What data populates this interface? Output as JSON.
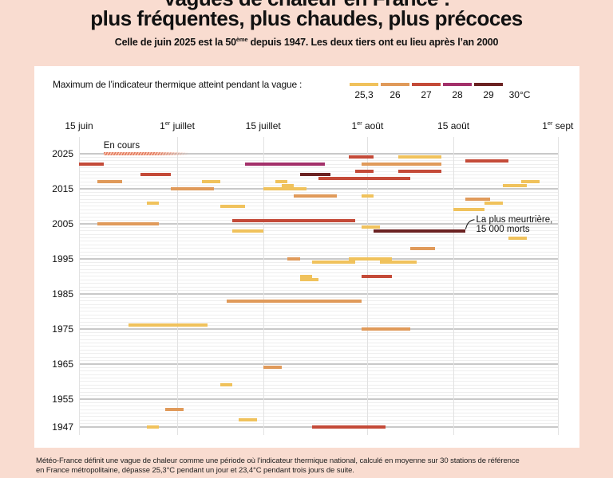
{
  "title_line1": "Vagues de chaleur en France :",
  "title_line2": "plus fréquentes, plus chaudes, plus précoces",
  "subtitle": {
    "before": "Celle de juin 2025 est la 50",
    "sup": "ème",
    "after": " depuis 1947. Les deux tiers ont eu lieu après l’an 2000"
  },
  "footnote_line1": "Météo-France définit une vague de chaleur comme une période où l’indicateur thermique national, calculé en moyenne sur 30 stations de référence",
  "footnote_line2": "en France métropolitaine, dépasse 25,3°C pendant un jour et 23,4°C pendant trois jours de suite.",
  "chart_data": {
    "type": "timeline",
    "legend": {
      "title": "Maximum de l’indicateur thermique atteint pendant la vague :",
      "ticks": [
        "25,3",
        "26",
        "27",
        "28",
        "29",
        "30°C"
      ],
      "colors": [
        "#f0c25c",
        "#e09a5a",
        "#c44a38",
        "#a3306a",
        "#6b2222"
      ]
    },
    "x_ticks": [
      {
        "num": "15 juin",
        "sup": "",
        "rest": "",
        "date": "06-15"
      },
      {
        "num": "1",
        "sup": "er",
        "rest": " juillet",
        "date": "07-01"
      },
      {
        "num": "15 juillet",
        "sup": "",
        "rest": "",
        "date": "07-15"
      },
      {
        "num": "1",
        "sup": "er",
        "rest": " août",
        "date": "08-01"
      },
      {
        "num": "15 août",
        "sup": "",
        "rest": "",
        "date": "08-15"
      },
      {
        "num": "1",
        "sup": "er",
        "rest": " sept",
        "date": "09-01"
      }
    ],
    "xlim": [
      "06-15",
      "09-01"
    ],
    "ylim": [
      1947,
      2025
    ],
    "y_ticks": [
      "2025",
      "2015",
      "2005",
      "1995",
      "1985",
      "1975",
      "1965",
      "1955",
      "1947"
    ],
    "ongoing": {
      "label": "En cours",
      "year": 2025,
      "start": "06-19",
      "end": "07-03"
    },
    "annotation": {
      "line1": "La plus meurtrière,",
      "line2": "15 000 morts",
      "year": 2003
    },
    "waves": [
      {
        "year": 2024,
        "start": "07-29",
        "end": "08-02",
        "class": 2
      },
      {
        "year": 2024,
        "start": "08-06",
        "end": "08-13",
        "class": 0
      },
      {
        "year": 2023,
        "start": "08-17",
        "end": "08-24",
        "class": 2
      },
      {
        "year": 2022,
        "start": "06-15",
        "end": "06-19",
        "class": 2
      },
      {
        "year": 2022,
        "start": "07-12",
        "end": "07-25",
        "class": 3
      },
      {
        "year": 2022,
        "start": "07-31",
        "end": "08-13",
        "class": 1
      },
      {
        "year": 2020,
        "start": "07-30",
        "end": "08-02",
        "class": 2
      },
      {
        "year": 2020,
        "start": "08-06",
        "end": "08-13",
        "class": 2
      },
      {
        "year": 2019,
        "start": "06-25",
        "end": "06-30",
        "class": 2
      },
      {
        "year": 2019,
        "start": "07-21",
        "end": "07-26",
        "class": 4
      },
      {
        "year": 2018,
        "start": "07-24",
        "end": "08-08",
        "class": 2
      },
      {
        "year": 2017,
        "start": "06-18",
        "end": "06-22",
        "class": 1
      },
      {
        "year": 2017,
        "start": "07-05",
        "end": "07-08",
        "class": 0
      },
      {
        "year": 2017,
        "start": "07-17",
        "end": "07-19",
        "class": 0
      },
      {
        "year": 2017,
        "start": "08-26",
        "end": "08-29",
        "class": 0
      },
      {
        "year": 2016,
        "start": "07-18",
        "end": "07-20",
        "class": 0
      },
      {
        "year": 2016,
        "start": "08-23",
        "end": "08-27",
        "class": 0
      },
      {
        "year": 2015,
        "start": "06-30",
        "end": "07-07",
        "class": 1
      },
      {
        "year": 2015,
        "start": "07-15",
        "end": "07-22",
        "class": 0
      },
      {
        "year": 2013,
        "start": "07-20",
        "end": "07-27",
        "class": 1
      },
      {
        "year": 2013,
        "start": "07-31",
        "end": "08-02",
        "class": 0
      },
      {
        "year": 2012,
        "start": "08-17",
        "end": "08-21",
        "class": 1
      },
      {
        "year": 2011,
        "start": "06-26",
        "end": "06-28",
        "class": 0
      },
      {
        "year": 2011,
        "start": "08-20",
        "end": "08-23",
        "class": 0
      },
      {
        "year": 2010,
        "start": "07-08",
        "end": "07-12",
        "class": 0
      },
      {
        "year": 2009,
        "start": "08-15",
        "end": "08-20",
        "class": 0
      },
      {
        "year": 2006,
        "start": "07-10",
        "end": "07-30",
        "class": 2
      },
      {
        "year": 2005,
        "start": "06-18",
        "end": "06-28",
        "class": 1
      },
      {
        "year": 2004,
        "start": "07-31",
        "end": "08-03",
        "class": 0
      },
      {
        "year": 2003,
        "start": "07-10",
        "end": "07-15",
        "class": 0
      },
      {
        "year": 2003,
        "start": "08-02",
        "end": "08-17",
        "class": 4
      },
      {
        "year": 2001,
        "start": "08-24",
        "end": "08-27",
        "class": 0
      },
      {
        "year": 1998,
        "start": "08-08",
        "end": "08-12",
        "class": 1
      },
      {
        "year": 1995,
        "start": "07-19",
        "end": "07-21",
        "class": 1
      },
      {
        "year": 1995,
        "start": "07-29",
        "end": "08-05",
        "class": 0
      },
      {
        "year": 1994,
        "start": "07-23",
        "end": "07-30",
        "class": 0
      },
      {
        "year": 1994,
        "start": "08-03",
        "end": "08-09",
        "class": 0
      },
      {
        "year": 1990,
        "start": "07-21",
        "end": "07-23",
        "class": 0
      },
      {
        "year": 1990,
        "start": "07-31",
        "end": "08-05",
        "class": 2
      },
      {
        "year": 1989,
        "start": "07-21",
        "end": "07-24",
        "class": 0
      },
      {
        "year": 1983,
        "start": "07-09",
        "end": "07-31",
        "class": 1
      },
      {
        "year": 1976,
        "start": "06-23",
        "end": "07-06",
        "class": 0
      },
      {
        "year": 1975,
        "start": "07-31",
        "end": "08-08",
        "class": 1
      },
      {
        "year": 1964,
        "start": "07-15",
        "end": "07-18",
        "class": 1
      },
      {
        "year": 1959,
        "start": "07-08",
        "end": "07-10",
        "class": 0
      },
      {
        "year": 1952,
        "start": "06-29",
        "end": "07-02",
        "class": 1
      },
      {
        "year": 1949,
        "start": "07-11",
        "end": "07-14",
        "class": 0
      },
      {
        "year": 1947,
        "start": "06-26",
        "end": "06-28",
        "class": 0
      },
      {
        "year": 1947,
        "start": "07-23",
        "end": "08-04",
        "class": 2
      }
    ]
  }
}
